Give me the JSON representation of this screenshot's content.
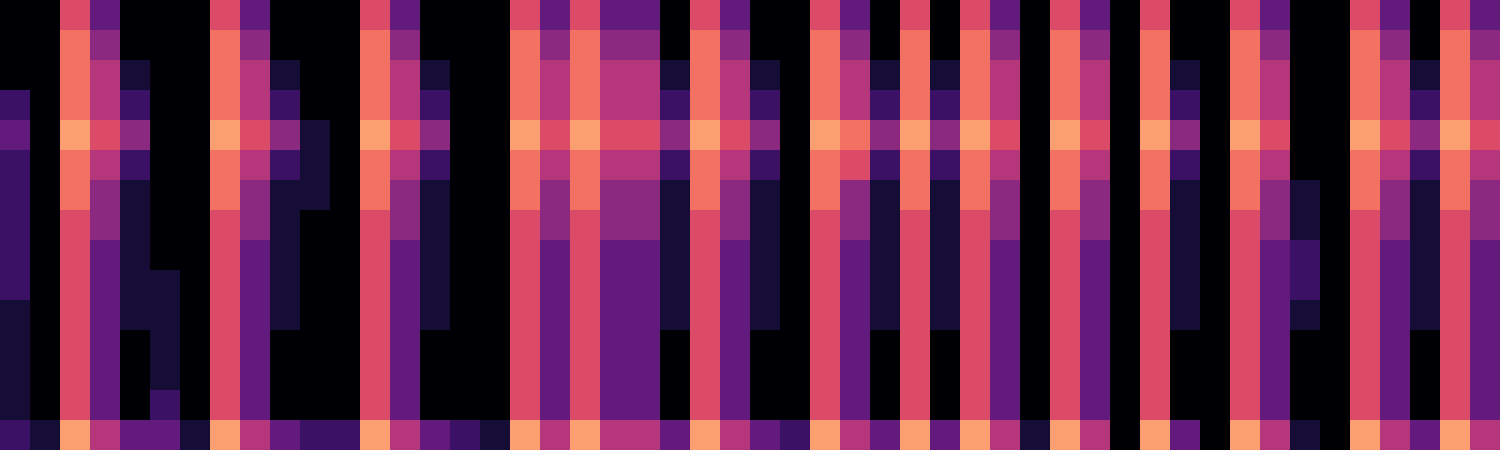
{
  "chart_data": {
    "type": "heatmap",
    "color": "magma",
    "tick_labels": false,
    "zlim": [
      0,
      10
    ],
    "values": [
      [
        0,
        0,
        6,
        3,
        0,
        0,
        0,
        6,
        3,
        0,
        0,
        0,
        6,
        3,
        0,
        0,
        0,
        6,
        3,
        6,
        3,
        3,
        0,
        6,
        3,
        0,
        0,
        6,
        3,
        0,
        6,
        0,
        6,
        3,
        0,
        6,
        3,
        0,
        6,
        0,
        0,
        6,
        3,
        0,
        0,
        6,
        3,
        0,
        6,
        3
      ],
      [
        0,
        0,
        7,
        4,
        0,
        0,
        0,
        7,
        4,
        0,
        0,
        0,
        7,
        4,
        0,
        0,
        0,
        7,
        4,
        7,
        4,
        4,
        0,
        7,
        4,
        0,
        0,
        7,
        4,
        0,
        7,
        0,
        7,
        4,
        0,
        7,
        4,
        0,
        7,
        0,
        0,
        7,
        4,
        0,
        0,
        7,
        4,
        0,
        7,
        4
      ],
      [
        0,
        0,
        7,
        5,
        1,
        0,
        0,
        7,
        5,
        1,
        0,
        0,
        7,
        5,
        1,
        0,
        0,
        7,
        5,
        7,
        5,
        5,
        1,
        7,
        5,
        1,
        0,
        7,
        5,
        1,
        7,
        1,
        7,
        5,
        0,
        7,
        5,
        0,
        7,
        1,
        0,
        7,
        5,
        0,
        0,
        7,
        5,
        1,
        7,
        5
      ],
      [
        2,
        0,
        7,
        5,
        2,
        0,
        0,
        7,
        5,
        2,
        0,
        0,
        7,
        5,
        2,
        0,
        0,
        7,
        5,
        7,
        5,
        5,
        2,
        7,
        5,
        2,
        0,
        7,
        5,
        2,
        7,
        2,
        7,
        5,
        0,
        7,
        5,
        0,
        7,
        2,
        0,
        7,
        5,
        0,
        0,
        7,
        5,
        2,
        7,
        5
      ],
      [
        3,
        0,
        8,
        6,
        4,
        0,
        0,
        8,
        6,
        4,
        1,
        0,
        8,
        6,
        4,
        0,
        0,
        8,
        6,
        8,
        6,
        6,
        4,
        8,
        6,
        4,
        0,
        8,
        7,
        4,
        8,
        4,
        8,
        6,
        0,
        8,
        6,
        0,
        8,
        4,
        0,
        8,
        6,
        0,
        0,
        8,
        6,
        4,
        8,
        6
      ],
      [
        2,
        0,
        7,
        5,
        2,
        0,
        0,
        7,
        5,
        2,
        1,
        0,
        7,
        5,
        2,
        0,
        0,
        7,
        5,
        7,
        5,
        5,
        2,
        7,
        5,
        2,
        0,
        7,
        6,
        2,
        7,
        2,
        7,
        5,
        0,
        7,
        5,
        0,
        7,
        2,
        0,
        7,
        5,
        0,
        0,
        7,
        5,
        2,
        7,
        5
      ],
      [
        2,
        0,
        7,
        4,
        1,
        0,
        0,
        7,
        4,
        1,
        1,
        0,
        7,
        4,
        1,
        0,
        0,
        7,
        4,
        7,
        4,
        4,
        1,
        7,
        4,
        1,
        0,
        7,
        4,
        1,
        7,
        1,
        7,
        4,
        0,
        7,
        4,
        0,
        7,
        1,
        0,
        7,
        4,
        1,
        0,
        7,
        4,
        1,
        7,
        4
      ],
      [
        2,
        0,
        6,
        4,
        1,
        0,
        0,
        6,
        4,
        1,
        0,
        0,
        6,
        4,
        1,
        0,
        0,
        6,
        4,
        6,
        4,
        4,
        1,
        6,
        4,
        1,
        0,
        6,
        4,
        1,
        6,
        1,
        6,
        4,
        0,
        6,
        4,
        0,
        6,
        1,
        0,
        6,
        4,
        1,
        0,
        6,
        4,
        1,
        6,
        4
      ],
      [
        2,
        0,
        6,
        3,
        1,
        0,
        0,
        6,
        3,
        1,
        0,
        0,
        6,
        3,
        1,
        0,
        0,
        6,
        3,
        6,
        3,
        3,
        1,
        6,
        3,
        1,
        0,
        6,
        3,
        1,
        6,
        1,
        6,
        3,
        0,
        6,
        3,
        0,
        6,
        1,
        0,
        6,
        3,
        2,
        0,
        6,
        3,
        1,
        6,
        3
      ],
      [
        2,
        0,
        6,
        3,
        1,
        1,
        0,
        6,
        3,
        1,
        0,
        0,
        6,
        3,
        1,
        0,
        0,
        6,
        3,
        6,
        3,
        3,
        1,
        6,
        3,
        1,
        0,
        6,
        3,
        1,
        6,
        1,
        6,
        3,
        0,
        6,
        3,
        0,
        6,
        1,
        0,
        6,
        3,
        2,
        0,
        6,
        3,
        1,
        6,
        3
      ],
      [
        1,
        0,
        6,
        3,
        1,
        1,
        0,
        6,
        3,
        1,
        0,
        0,
        6,
        3,
        1,
        0,
        0,
        6,
        3,
        6,
        3,
        3,
        1,
        6,
        3,
        1,
        0,
        6,
        3,
        1,
        6,
        1,
        6,
        3,
        0,
        6,
        3,
        0,
        6,
        1,
        0,
        6,
        3,
        1,
        0,
        6,
        3,
        1,
        6,
        3
      ],
      [
        1,
        0,
        6,
        3,
        0,
        1,
        0,
        6,
        3,
        0,
        0,
        0,
        6,
        3,
        0,
        0,
        0,
        6,
        3,
        6,
        3,
        3,
        0,
        6,
        3,
        0,
        0,
        6,
        3,
        0,
        6,
        0,
        6,
        3,
        0,
        6,
        3,
        0,
        6,
        0,
        0,
        6,
        3,
        0,
        0,
        6,
        3,
        0,
        6,
        3
      ],
      [
        1,
        0,
        6,
        3,
        0,
        1,
        0,
        6,
        3,
        0,
        0,
        0,
        6,
        3,
        0,
        0,
        0,
        6,
        3,
        6,
        3,
        3,
        0,
        6,
        3,
        0,
        0,
        6,
        3,
        0,
        6,
        0,
        6,
        3,
        0,
        6,
        3,
        0,
        6,
        0,
        0,
        6,
        3,
        0,
        0,
        6,
        3,
        0,
        6,
        3
      ],
      [
        1,
        0,
        6,
        3,
        0,
        2,
        0,
        6,
        3,
        0,
        0,
        0,
        6,
        3,
        0,
        0,
        0,
        6,
        3,
        6,
        3,
        3,
        0,
        6,
        3,
        0,
        0,
        6,
        3,
        0,
        6,
        0,
        6,
        3,
        0,
        6,
        3,
        0,
        6,
        0,
        0,
        6,
        3,
        0,
        0,
        6,
        3,
        0,
        6,
        3
      ],
      [
        2,
        1,
        8,
        5,
        3,
        3,
        1,
        8,
        5,
        3,
        2,
        2,
        8,
        5,
        3,
        2,
        1,
        8,
        5,
        8,
        5,
        5,
        3,
        8,
        5,
        3,
        2,
        8,
        5,
        3,
        8,
        3,
        8,
        5,
        1,
        8,
        5,
        0,
        8,
        3,
        0,
        8,
        5,
        1,
        0,
        8,
        5,
        3,
        8,
        5
      ]
    ]
  }
}
